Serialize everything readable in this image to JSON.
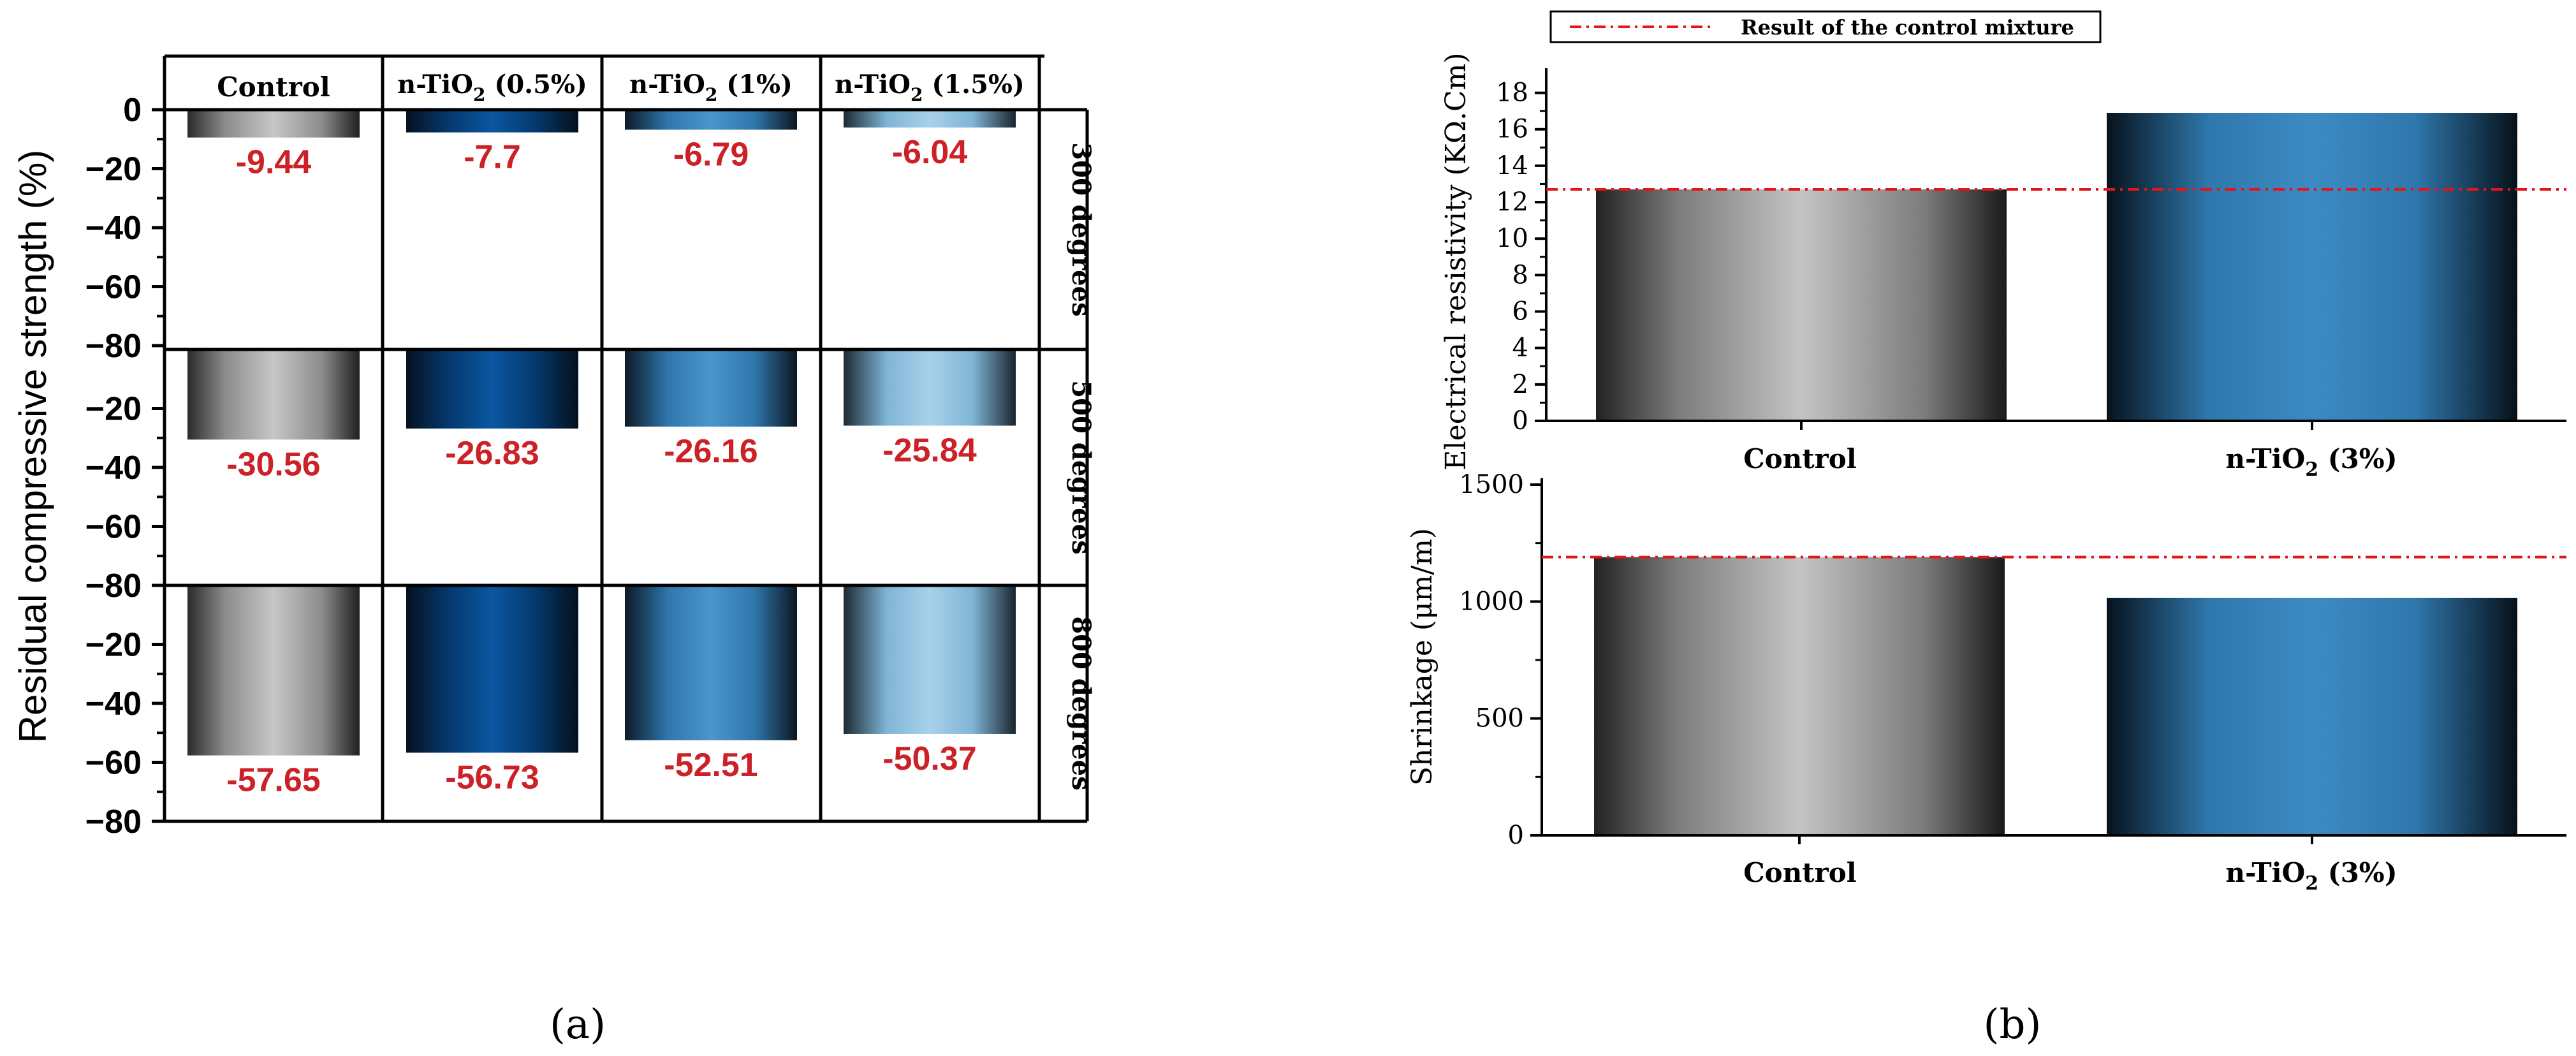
{
  "colors": {
    "value_label": "#cc2127",
    "control_line": "#e5141b",
    "axis": "#000000"
  },
  "panel_a": {
    "caption": "(a)",
    "y_label": "Residual compressive strength (%)",
    "columns": [
      {
        "label": "Control",
        "base": "Control",
        "sub": "",
        "tail": "",
        "gradient": "grad-gray"
      },
      {
        "label": "n-TiO2 (0.5%)",
        "base": "n-TiO",
        "sub": "2",
        "tail": " (0.5%)",
        "gradient": "grad-navy"
      },
      {
        "label": "n-TiO2 (1%)",
        "base": "n-TiO",
        "sub": "2",
        "tail": " (1%)",
        "gradient": "grad-blue"
      },
      {
        "label": "n-TiO2 (1.5%)",
        "base": "n-TiO",
        "sub": "2",
        "tail": " (1.5%)",
        "gradient": "grad-light"
      }
    ],
    "rows": [
      "300 degrees",
      "500 degrees",
      "800 degrees"
    ],
    "y_ticks": [
      "0",
      "−20",
      "−40",
      "−60",
      "−80"
    ],
    "y_range": [
      -80,
      0
    ]
  },
  "panel_b": {
    "caption": "(b)",
    "legend_label": "Result of the control mixture",
    "categories": [
      {
        "label": "Control",
        "base": "Control",
        "sub": "",
        "tail": ""
      },
      {
        "label": "n-TiO2 (3%)",
        "base": "n-TiO",
        "sub": "2",
        "tail": " (3%)"
      }
    ],
    "resistivity_ylabel": "Electrical resistivity (KΩ.Cm)",
    "resistivity_ticks": [
      "0",
      "2",
      "4",
      "6",
      "8",
      "10",
      "12",
      "14",
      "16",
      "18"
    ],
    "shrinkage_ylabel": "Shrinkage (μm/m)",
    "shrinkage_ticks": [
      "0",
      "500",
      "1000",
      "1500"
    ]
  },
  "chart_data": [
    {
      "type": "bar",
      "title": "",
      "panel": "(a)",
      "ylabel": "Residual compressive strength (%)",
      "ylim": [
        -80,
        0
      ],
      "categories": [
        "Control",
        "n-TiO2 (0.5%)",
        "n-TiO2 (1%)",
        "n-TiO2 (1.5%)"
      ],
      "series": [
        {
          "name": "300 degrees",
          "values": [
            -9.44,
            -7.7,
            -6.79,
            -6.04
          ],
          "labels": [
            "-9.44",
            "-7.7",
            "-6.79",
            "-6.04"
          ]
        },
        {
          "name": "500 degrees",
          "values": [
            -30.56,
            -26.83,
            -26.16,
            -25.84
          ],
          "labels": [
            "-30.56",
            "-26.83",
            "-26.16",
            "-25.84"
          ]
        },
        {
          "name": "800 degrees",
          "values": [
            -57.65,
            -56.73,
            -52.51,
            -50.37
          ],
          "labels": [
            "-57.65",
            "-56.73",
            "-52.51",
            "-50.37"
          ]
        }
      ]
    },
    {
      "type": "bar",
      "panel": "(b)",
      "ylabel": "Electrical resistivity (KΩ.Cm)",
      "ylim": [
        0,
        19
      ],
      "categories": [
        "Control",
        "n-TiO2 (3%)"
      ],
      "values": [
        12.7,
        16.9
      ],
      "reference_line": {
        "label": "Result of the control mixture",
        "value": 12.7
      }
    },
    {
      "type": "bar",
      "panel": "(b)",
      "ylabel": "Shrinkage (μm/m)",
      "ylim": [
        0,
        1500
      ],
      "categories": [
        "Control",
        "n-TiO2 (3%)"
      ],
      "values": [
        1190,
        1015
      ],
      "reference_line": {
        "label": "Result of the control mixture",
        "value": 1190
      }
    }
  ]
}
